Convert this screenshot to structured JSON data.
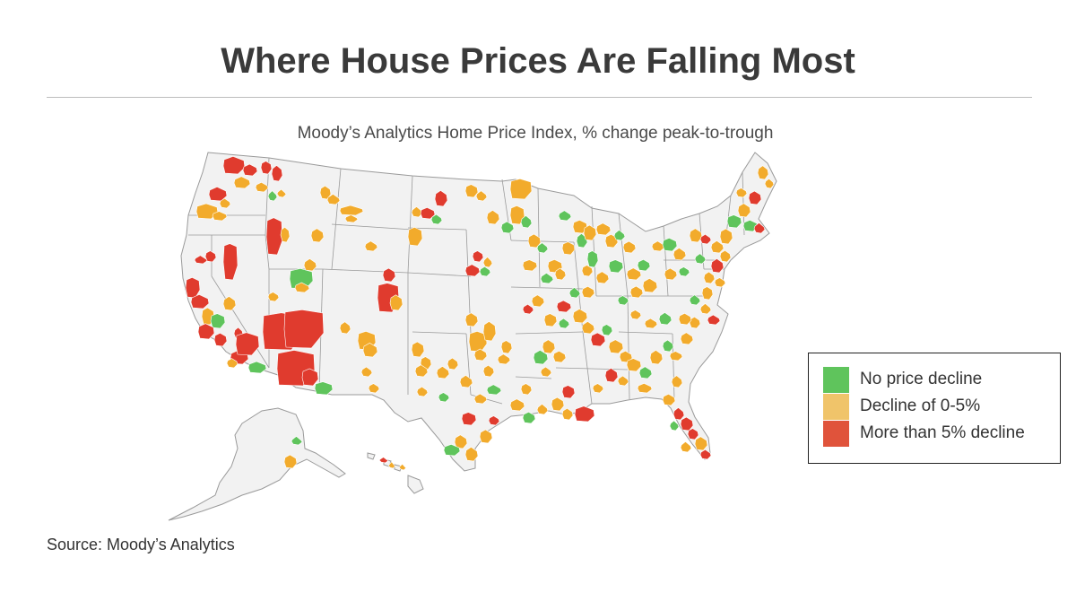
{
  "title": "Where House Prices Are Falling Most",
  "subtitle": "Moody’s Analytics Home Price Index, % change peak-to-trough",
  "legend": [
    {
      "label": "No price decline",
      "color": "#5fc45c"
    },
    {
      "label": "Decline of 0-5%",
      "color": "#f0c46a"
    },
    {
      "label": "More than 5% decline",
      "color": "#e0533b"
    }
  ],
  "map_colors": {
    "land": "#f2f2f2",
    "border": "#9a9a9a",
    "none": "#5fc45c",
    "moderate": "#f2ab2c",
    "severe": "#e03b2e"
  },
  "source": "Source: Moody’s Analytics"
}
